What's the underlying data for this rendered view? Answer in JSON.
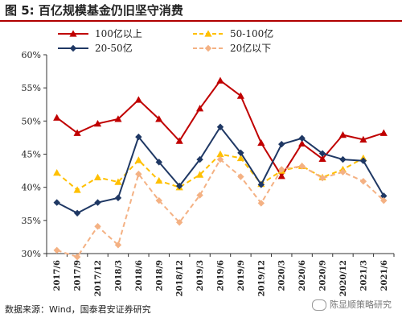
{
  "header": {
    "figure_label": "图 5:",
    "title": "百亿规模基金仍旧坚守消费",
    "accent_color": "#b00000"
  },
  "source_note": "数据来源：Wind，国泰君安证券研究",
  "watermark": "陈显顺策略研究",
  "chart_data": {
    "type": "line",
    "categories": [
      "2017/6",
      "2017/9",
      "2017/12",
      "2018/3",
      "2018/6",
      "2018/9",
      "2018/12",
      "2019/3",
      "2019/6",
      "2019/9",
      "2019/12",
      "2020/3",
      "2020/6",
      "2020/9",
      "2020/12",
      "2021/3",
      "2021/6"
    ],
    "ylim": [
      0.3,
      0.6
    ],
    "yticks": [
      "30%",
      "35%",
      "40%",
      "45%",
      "50%",
      "55%",
      "60%"
    ],
    "legend_position": "top",
    "grid": false,
    "series": [
      {
        "name": "100亿以上",
        "color": "#c00000",
        "dash": "solid",
        "marker": "triangle",
        "values": [
          0.505,
          0.482,
          0.496,
          0.503,
          0.532,
          0.503,
          0.47,
          0.519,
          0.561,
          0.538,
          0.467,
          0.417,
          0.466,
          0.443,
          0.479,
          0.472,
          0.482
        ]
      },
      {
        "name": "50-100亿",
        "color": "#ffc000",
        "dash": "dashed",
        "marker": "triangle",
        "values": [
          0.422,
          0.396,
          0.415,
          0.408,
          0.441,
          0.41,
          0.4,
          0.419,
          0.45,
          0.444,
          0.405,
          0.425,
          0.432,
          0.415,
          0.427,
          0.444,
          null
        ]
      },
      {
        "name": "20-50亿",
        "color": "#1f3864",
        "dash": "solid",
        "marker": "diamond",
        "values": [
          0.377,
          0.361,
          0.377,
          0.384,
          0.476,
          0.438,
          0.402,
          0.442,
          0.491,
          0.452,
          0.404,
          0.465,
          0.474,
          0.451,
          0.442,
          0.44,
          0.387
        ]
      },
      {
        "name": "20亿以下",
        "color": "#f4b183",
        "dash": "dashed",
        "marker": "diamond",
        "values": [
          0.305,
          0.295,
          0.341,
          0.313,
          0.42,
          0.38,
          0.347,
          0.388,
          0.442,
          0.416,
          0.376,
          0.427,
          0.432,
          0.414,
          0.423,
          0.409,
          0.38
        ]
      }
    ]
  }
}
